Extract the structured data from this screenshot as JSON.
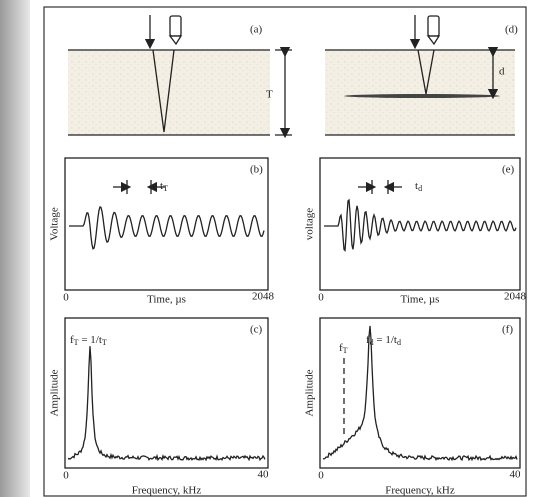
{
  "panels": [
    {
      "tag": "(a)",
      "dimension": "T"
    },
    {
      "tag": "(d)",
      "dimension": "d"
    },
    {
      "tag": "(b)",
      "y_label": "Voltage",
      "interval": {
        "main": "t",
        "sub": "T"
      },
      "x_start": "0",
      "x_label": "Time, µs",
      "x_end": "2048"
    },
    {
      "tag": "(e)",
      "y_label": "voltage",
      "interval": {
        "main": "t",
        "sub": "d"
      },
      "x_start": "0",
      "x_label": "Time, µs",
      "x_end": "2048"
    },
    {
      "tag": "(c)",
      "y_label": "Amplitude",
      "peak": {
        "main": "f",
        "sub": "T",
        "eq": " = 1/t",
        "eq_sub": "T"
      },
      "x_start": "0",
      "x_label": "Frequency, kHz",
      "x_end": "40"
    },
    {
      "tag": "(f)",
      "y_label": "Amplitude",
      "marker": {
        "main": "f",
        "sub": "T"
      },
      "peak": {
        "main": "f",
        "sub": "d",
        "eq": " = 1/t",
        "eq_sub": "d"
      },
      "x_start": "0",
      "x_label": "Frequency, kHz",
      "x_end": "40"
    }
  ]
}
